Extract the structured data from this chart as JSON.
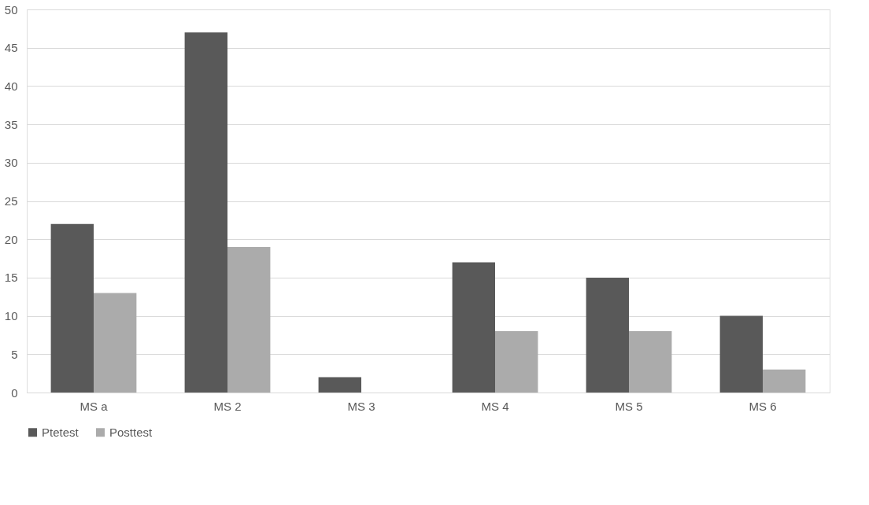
{
  "chart_data": {
    "type": "bar",
    "categories": [
      "MS a",
      "MS 2",
      "MS 3",
      "MS 4",
      "MS 5",
      "MS 6"
    ],
    "series": [
      {
        "name": "Ptetest",
        "color": "#595959",
        "values": [
          22,
          47,
          2,
          17,
          15,
          10
        ]
      },
      {
        "name": "Posttest",
        "color": "#ababab",
        "values": [
          13,
          19,
          0,
          8,
          8,
          3
        ]
      }
    ],
    "ylim": [
      0,
      50
    ],
    "yticks": [
      0,
      5,
      10,
      15,
      20,
      25,
      30,
      35,
      40,
      45,
      50
    ],
    "grid": "y",
    "legend": "bottom"
  }
}
